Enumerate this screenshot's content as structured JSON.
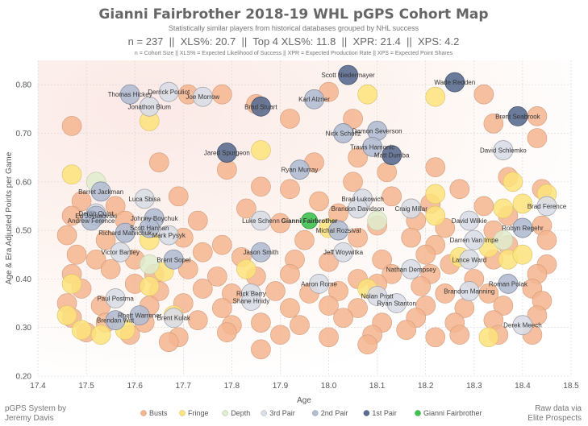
{
  "title": "Gianni Fairbrother 2018-19 WHL pGPS Cohort Map",
  "subtitle": "Statistically similar players from historical databases grouped by NHL success",
  "stats_line": "n = 237  ||  XLS%: 20.7  ||  Top 4 XLS%: 11.8  ||  XPR: 21.4  ||  XPS: 4.2",
  "definitions": "n = Cohort Size || XLS% = Expected Likelihood of Success || XPR = Expected Production Rate || XPS = Expected Point Shares",
  "credit_left": [
    "pGPS System by",
    "Jeremy Davis"
  ],
  "credit_right": [
    "Raw data via",
    "Elite Prospects"
  ],
  "colors": {
    "Busts": "#f4b58f",
    "Fringe": "#fde37a",
    "Depth": "#dfeccd",
    "3rd Pair": "#d9dde5",
    "2nd Pair": "#b2bdd2",
    "1st Pair": "#5b6d90",
    "Gianni Fairbrother": "#3ec252"
  },
  "chart_data": {
    "type": "scatter",
    "xlabel": "Age",
    "ylabel": "Age & Era Adjusted Points per Game",
    "xlim": [
      17.4,
      18.5
    ],
    "ylim": [
      0.2,
      0.85
    ],
    "xticks": [
      "17.4",
      "17.5",
      "17.6",
      "17.7",
      "17.8",
      "17.9",
      "18.0",
      "18.1",
      "18.2",
      "18.3",
      "18.4",
      "18.5"
    ],
    "yticks": [
      "0.20",
      "0.30",
      "0.40",
      "0.50",
      "0.60",
      "0.70",
      "0.80"
    ],
    "grid": true,
    "legend_position": "bottom",
    "legend": [
      "Busts",
      "Fringe",
      "Depth",
      "3rd Pair",
      "2nd Pair",
      "1st Pair",
      "Gianni Fairbrother"
    ],
    "labeled_points": [
      {
        "name": "Scott Niedermayer",
        "x": 18.04,
        "y": 0.82,
        "group": "1st Pair"
      },
      {
        "name": "Wade Redden",
        "x": 18.26,
        "y": 0.805,
        "group": "1st Pair"
      },
      {
        "name": "Derrick Pouliot",
        "x": 17.67,
        "y": 0.785,
        "group": "3rd Pair"
      },
      {
        "name": "Thomas Hickey",
        "x": 17.59,
        "y": 0.78,
        "group": "2nd Pair"
      },
      {
        "name": "Joe Morrow",
        "x": 17.74,
        "y": 0.775,
        "group": "3rd Pair"
      },
      {
        "name": "Karl Alzner",
        "x": 17.97,
        "y": 0.77,
        "group": "2nd Pair"
      },
      {
        "name": "Brad Stuart",
        "x": 17.86,
        "y": 0.755,
        "group": "1st Pair"
      },
      {
        "name": "Jonathon Blum",
        "x": 17.63,
        "y": 0.755,
        "group": "3rd Pair"
      },
      {
        "name": "Brent Seabrook",
        "x": 18.39,
        "y": 0.735,
        "group": "1st Pair"
      },
      {
        "name": "Damon Severson",
        "x": 18.1,
        "y": 0.705,
        "group": "2nd Pair"
      },
      {
        "name": "Nick Schultz",
        "x": 18.03,
        "y": 0.7,
        "group": "2nd Pair"
      },
      {
        "name": "Travis Hamonic",
        "x": 18.09,
        "y": 0.672,
        "group": "2nd Pair"
      },
      {
        "name": "Matt Dumba",
        "x": 18.13,
        "y": 0.655,
        "group": "1st Pair"
      },
      {
        "name": "David Schlemko",
        "x": 18.36,
        "y": 0.665,
        "group": "3rd Pair"
      },
      {
        "name": "Jared Spurgeon",
        "x": 17.79,
        "y": 0.66,
        "group": "1st Pair"
      },
      {
        "name": "Ryan Murray",
        "x": 17.94,
        "y": 0.625,
        "group": "2nd Pair"
      },
      {
        "name": "Barret Jackman",
        "x": 17.53,
        "y": 0.58,
        "group": "2nd Pair"
      },
      {
        "name": "Luca Sbisa",
        "x": 17.62,
        "y": 0.565,
        "group": "3rd Pair"
      },
      {
        "name": "Brad Lukowich",
        "x": 18.07,
        "y": 0.565,
        "group": "3rd Pair"
      },
      {
        "name": "Brandon Davidson",
        "x": 18.06,
        "y": 0.545,
        "group": "3rd Pair"
      },
      {
        "name": "Craig Millar",
        "x": 18.17,
        "y": 0.545,
        "group": "3rd Pair"
      },
      {
        "name": "Brad Ference",
        "x": 18.45,
        "y": 0.55,
        "group": "3rd Pair"
      },
      {
        "name": "Deron Quint",
        "x": 17.52,
        "y": 0.535,
        "group": "3rd Pair"
      },
      {
        "name": "Ed Jovanovski",
        "x": 17.52,
        "y": 0.53,
        "group": "2nd Pair"
      },
      {
        "name": "Johnny Boychuk",
        "x": 17.64,
        "y": 0.525,
        "group": "2nd Pair"
      },
      {
        "name": "Luke Schenn",
        "x": 17.86,
        "y": 0.52,
        "group": "3rd Pair"
      },
      {
        "name": "David Wilkie",
        "x": 18.29,
        "y": 0.52,
        "group": "3rd Pair"
      },
      {
        "name": "Andrew Ference",
        "x": 17.51,
        "y": 0.52,
        "group": "2nd Pair"
      },
      {
        "name": "Scott Hannan",
        "x": 17.63,
        "y": 0.505,
        "group": "2nd Pair"
      },
      {
        "name": "Robyn Regehr",
        "x": 18.4,
        "y": 0.505,
        "group": "2nd Pair"
      },
      {
        "name": "Michal Rozsival",
        "x": 18.02,
        "y": 0.5,
        "group": "2nd Pair"
      },
      {
        "name": "Richard Matvichuk",
        "x": 17.58,
        "y": 0.495,
        "group": "2nd Pair"
      },
      {
        "name": "Mark Pysyk",
        "x": 17.67,
        "y": 0.49,
        "group": "3rd Pair"
      },
      {
        "name": "Darren Van Impe",
        "x": 18.3,
        "y": 0.48,
        "group": "3rd Pair"
      },
      {
        "name": "Victor Bartley",
        "x": 17.57,
        "y": 0.455,
        "group": "3rd Pair"
      },
      {
        "name": "Jason Smith",
        "x": 17.86,
        "y": 0.455,
        "group": "2nd Pair"
      },
      {
        "name": "Jeff Woywitka",
        "x": 18.03,
        "y": 0.455,
        "group": "3rd Pair"
      },
      {
        "name": "Brent Sopel",
        "x": 17.68,
        "y": 0.44,
        "group": "2nd Pair"
      },
      {
        "name": "Lance Ward",
        "x": 18.29,
        "y": 0.44,
        "group": "3rd Pair"
      },
      {
        "name": "Nathan Dempsey",
        "x": 18.17,
        "y": 0.42,
        "group": "3rd Pair"
      },
      {
        "name": "Aaron Rome",
        "x": 17.98,
        "y": 0.39,
        "group": "3rd Pair"
      },
      {
        "name": "Roman Polak",
        "x": 18.37,
        "y": 0.39,
        "group": "2nd Pair"
      },
      {
        "name": "Rick Berry",
        "x": 17.84,
        "y": 0.37,
        "group": "3rd Pair"
      },
      {
        "name": "Brandon Manning",
        "x": 18.29,
        "y": 0.375,
        "group": "3rd Pair"
      },
      {
        "name": "Shane Hnidy",
        "x": 17.84,
        "y": 0.355,
        "group": "3rd Pair"
      },
      {
        "name": "Nolan Pratt",
        "x": 18.1,
        "y": 0.365,
        "group": "3rd Pair"
      },
      {
        "name": "Paul Postma",
        "x": 17.56,
        "y": 0.36,
        "group": "3rd Pair"
      },
      {
        "name": "Ryan Stanton",
        "x": 18.14,
        "y": 0.35,
        "group": "3rd Pair"
      },
      {
        "name": "Rhett Warrener",
        "x": 17.61,
        "y": 0.325,
        "group": "2nd Pair"
      },
      {
        "name": "Brent Kulak",
        "x": 17.68,
        "y": 0.32,
        "group": "3rd Pair"
      },
      {
        "name": "Brendan Witt",
        "x": 17.56,
        "y": 0.315,
        "group": "2nd Pair"
      },
      {
        "name": "Derek Meech",
        "x": 18.4,
        "y": 0.305,
        "group": "3rd Pair"
      },
      {
        "name": "Gianni Fairbrother",
        "x": 17.96,
        "y": 0.52,
        "group": "Gianni Fairbrother"
      }
    ],
    "unlabeled_points": [
      [
        17.47,
        0.715,
        "Busts"
      ],
      [
        17.71,
        0.78,
        "Busts"
      ],
      [
        17.78,
        0.78,
        "Busts"
      ],
      [
        17.85,
        0.76,
        "Busts"
      ],
      [
        18.0,
        0.785,
        "Busts"
      ],
      [
        18.32,
        0.78,
        "Busts"
      ],
      [
        18.43,
        0.735,
        "Busts"
      ],
      [
        18.34,
        0.72,
        "Busts"
      ],
      [
        18.05,
        0.73,
        "Busts"
      ],
      [
        17.92,
        0.73,
        "Busts"
      ],
      [
        18.43,
        0.69,
        "Busts"
      ],
      [
        18.06,
        0.65,
        "Busts"
      ],
      [
        17.97,
        0.64,
        "Busts"
      ],
      [
        18.12,
        0.62,
        "Busts"
      ],
      [
        18.22,
        0.63,
        "Busts"
      ],
      [
        17.79,
        0.625,
        "Busts"
      ],
      [
        17.65,
        0.64,
        "Busts"
      ],
      [
        17.86,
        0.59,
        "Busts"
      ],
      [
        17.92,
        0.585,
        "Busts"
      ],
      [
        18.05,
        0.6,
        "Busts"
      ],
      [
        18.13,
        0.57,
        "Busts"
      ],
      [
        18.27,
        0.585,
        "Busts"
      ],
      [
        18.37,
        0.61,
        "Busts"
      ],
      [
        18.44,
        0.585,
        "Busts"
      ],
      [
        17.49,
        0.56,
        "Busts"
      ],
      [
        17.56,
        0.55,
        "Busts"
      ],
      [
        17.69,
        0.57,
        "Busts"
      ],
      [
        17.83,
        0.545,
        "Busts"
      ],
      [
        17.98,
        0.56,
        "Busts"
      ],
      [
        18.02,
        0.535,
        "Busts"
      ],
      [
        18.21,
        0.555,
        "Busts"
      ],
      [
        18.32,
        0.55,
        "Busts"
      ],
      [
        18.37,
        0.53,
        "Busts"
      ],
      [
        17.47,
        0.53,
        "Busts"
      ],
      [
        17.58,
        0.52,
        "Busts"
      ],
      [
        17.73,
        0.52,
        "Busts"
      ],
      [
        17.9,
        0.515,
        "Busts"
      ],
      [
        18.1,
        0.51,
        "Busts"
      ],
      [
        18.18,
        0.52,
        "Busts"
      ],
      [
        18.24,
        0.505,
        "Busts"
      ],
      [
        18.34,
        0.5,
        "Busts"
      ],
      [
        18.44,
        0.51,
        "Busts"
      ],
      [
        17.46,
        0.49,
        "Busts"
      ],
      [
        17.54,
        0.48,
        "Busts"
      ],
      [
        17.7,
        0.485,
        "Busts"
      ],
      [
        17.78,
        0.47,
        "Busts"
      ],
      [
        17.95,
        0.48,
        "Busts"
      ],
      [
        18.06,
        0.485,
        "Busts"
      ],
      [
        18.17,
        0.485,
        "Busts"
      ],
      [
        18.22,
        0.47,
        "Busts"
      ],
      [
        18.37,
        0.47,
        "Busts"
      ],
      [
        18.45,
        0.48,
        "Busts"
      ],
      [
        17.48,
        0.45,
        "Busts"
      ],
      [
        17.52,
        0.44,
        "Busts"
      ],
      [
        17.6,
        0.44,
        "Busts"
      ],
      [
        17.74,
        0.455,
        "Busts"
      ],
      [
        17.82,
        0.445,
        "Busts"
      ],
      [
        17.93,
        0.44,
        "Busts"
      ],
      [
        18.0,
        0.435,
        "Busts"
      ],
      [
        18.11,
        0.44,
        "Busts"
      ],
      [
        18.2,
        0.45,
        "Busts"
      ],
      [
        18.25,
        0.43,
        "Busts"
      ],
      [
        18.34,
        0.44,
        "Busts"
      ],
      [
        18.45,
        0.43,
        "Busts"
      ],
      [
        17.47,
        0.41,
        "Busts"
      ],
      [
        17.55,
        0.42,
        "Busts"
      ],
      [
        17.64,
        0.41,
        "Busts"
      ],
      [
        17.71,
        0.42,
        "Busts"
      ],
      [
        17.77,
        0.405,
        "Busts"
      ],
      [
        17.85,
        0.405,
        "Busts"
      ],
      [
        17.92,
        0.41,
        "Busts"
      ],
      [
        18.06,
        0.4,
        "Busts"
      ],
      [
        18.13,
        0.41,
        "Busts"
      ],
      [
        18.21,
        0.41,
        "Busts"
      ],
      [
        18.3,
        0.4,
        "Busts"
      ],
      [
        18.43,
        0.41,
        "Busts"
      ],
      [
        17.49,
        0.38,
        "Busts"
      ],
      [
        17.6,
        0.39,
        "Busts"
      ],
      [
        17.65,
        0.375,
        "Busts"
      ],
      [
        17.74,
        0.38,
        "Busts"
      ],
      [
        17.8,
        0.37,
        "Busts"
      ],
      [
        17.89,
        0.375,
        "Busts"
      ],
      [
        17.96,
        0.37,
        "Busts"
      ],
      [
        18.02,
        0.375,
        "Busts"
      ],
      [
        18.1,
        0.39,
        "Busts"
      ],
      [
        18.19,
        0.385,
        "Busts"
      ],
      [
        18.24,
        0.37,
        "Busts"
      ],
      [
        18.33,
        0.37,
        "Busts"
      ],
      [
        18.42,
        0.38,
        "Busts"
      ],
      [
        17.46,
        0.35,
        "Busts"
      ],
      [
        17.53,
        0.345,
        "Busts"
      ],
      [
        17.63,
        0.345,
        "Busts"
      ],
      [
        17.7,
        0.35,
        "Busts"
      ],
      [
        17.78,
        0.34,
        "Busts"
      ],
      [
        17.92,
        0.34,
        "Busts"
      ],
      [
        18.0,
        0.345,
        "Busts"
      ],
      [
        18.06,
        0.34,
        "Busts"
      ],
      [
        18.2,
        0.345,
        "Busts"
      ],
      [
        18.28,
        0.34,
        "Busts"
      ],
      [
        18.36,
        0.345,
        "Busts"
      ],
      [
        18.44,
        0.355,
        "Busts"
      ],
      [
        17.47,
        0.32,
        "Busts"
      ],
      [
        17.54,
        0.31,
        "Busts"
      ],
      [
        17.62,
        0.31,
        "Busts"
      ],
      [
        17.73,
        0.315,
        "Busts"
      ],
      [
        17.8,
        0.305,
        "Busts"
      ],
      [
        17.86,
        0.31,
        "Busts"
      ],
      [
        17.94,
        0.305,
        "Busts"
      ],
      [
        18.03,
        0.32,
        "Busts"
      ],
      [
        18.11,
        0.31,
        "Busts"
      ],
      [
        18.18,
        0.32,
        "Busts"
      ],
      [
        18.26,
        0.31,
        "Busts"
      ],
      [
        18.34,
        0.315,
        "Busts"
      ],
      [
        18.43,
        0.325,
        "Busts"
      ],
      [
        17.5,
        0.29,
        "Busts"
      ],
      [
        17.59,
        0.285,
        "Busts"
      ],
      [
        17.69,
        0.28,
        "Busts"
      ],
      [
        17.79,
        0.29,
        "Busts"
      ],
      [
        17.9,
        0.285,
        "Busts"
      ],
      [
        18.0,
        0.28,
        "Busts"
      ],
      [
        18.09,
        0.285,
        "Busts"
      ],
      [
        18.16,
        0.295,
        "Busts"
      ],
      [
        18.22,
        0.28,
        "Busts"
      ],
      [
        18.35,
        0.285,
        "Busts"
      ],
      [
        18.42,
        0.285,
        "Busts"
      ],
      [
        17.67,
        0.27,
        "Busts"
      ],
      [
        17.86,
        0.255,
        "Busts"
      ],
      [
        18.08,
        0.265,
        "Busts"
      ],
      [
        18.27,
        0.285,
        "Busts"
      ],
      [
        17.47,
        0.615,
        "Fringe"
      ],
      [
        18.08,
        0.78,
        "Fringe"
      ],
      [
        18.22,
        0.775,
        "Fringe"
      ],
      [
        17.63,
        0.725,
        "Fringe"
      ],
      [
        17.86,
        0.665,
        "Fringe"
      ],
      [
        18.38,
        0.6,
        "Fringe"
      ],
      [
        18.22,
        0.575,
        "Fringe"
      ],
      [
        18.45,
        0.575,
        "Fringe"
      ],
      [
        18.4,
        0.555,
        "Fringe"
      ],
      [
        18.36,
        0.545,
        "Fringe"
      ],
      [
        18.0,
        0.505,
        "Fringe"
      ],
      [
        17.63,
        0.48,
        "Fringe"
      ],
      [
        18.33,
        0.465,
        "Fringe"
      ],
      [
        18.37,
        0.44,
        "Fringe"
      ],
      [
        18.4,
        0.45,
        "Fringe"
      ],
      [
        17.83,
        0.42,
        "Fringe"
      ],
      [
        17.47,
        0.39,
        "Fringe"
      ],
      [
        17.63,
        0.385,
        "Fringe"
      ],
      [
        17.66,
        0.415,
        "Fringe"
      ],
      [
        18.08,
        0.38,
        "Fringe"
      ],
      [
        17.46,
        0.325,
        "Fringe"
      ],
      [
        17.49,
        0.295,
        "Fringe"
      ],
      [
        17.53,
        0.285,
        "Fringe"
      ],
      [
        17.58,
        0.295,
        "Fringe"
      ],
      [
        17.68,
        0.325,
        "Fringe"
      ],
      [
        18.33,
        0.28,
        "Fringe"
      ],
      [
        18.27,
        0.445,
        "Fringe"
      ],
      [
        18.22,
        0.53,
        "Fringe"
      ],
      [
        17.52,
        0.6,
        "Depth"
      ],
      [
        18.1,
        0.52,
        "Depth"
      ],
      [
        17.63,
        0.43,
        "Depth"
      ],
      [
        18.36,
        0.48,
        "Depth"
      ]
    ]
  }
}
